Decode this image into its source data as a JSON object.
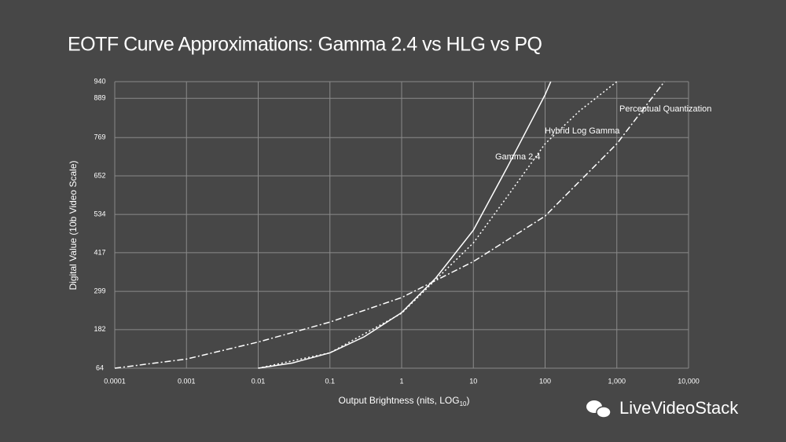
{
  "chart_data": {
    "type": "line",
    "title": "EOTF Curve Approximations: Gamma 2.4 vs HLG vs PQ",
    "xlabel": "Output Brightness (nits, LOG",
    "xlabel_sub": "10",
    "xlabel_end": ")",
    "ylabel": "Digital Value (10b Video Scale)",
    "watermark": "LiveVideoStack",
    "xscale": "log",
    "grid": true,
    "xlim": [
      0.0001,
      10000
    ],
    "xticks": [
      0.0001,
      0.001,
      0.01,
      0.1,
      1,
      10,
      100,
      {
        "value": 1000,
        "label": "1,000"
      },
      {
        "value": 10000,
        "label": "10,000"
      }
    ],
    "ylim": [
      64,
      940
    ],
    "yticks": [
      64,
      182,
      299,
      417,
      534,
      652,
      769,
      889,
      940
    ],
    "series": [
      {
        "name": "Gamma 2.4",
        "color": "#ffffff",
        "dash": "none",
        "x": [
          0.01,
          0.03,
          0.1,
          0.3,
          1,
          3,
          10,
          30,
          100,
          120
        ],
        "values": [
          64,
          80,
          111,
          160,
          234,
          340,
          486,
          680,
          900,
          940
        ]
      },
      {
        "name": "Hybrid Log Gamma",
        "color": "#ffffff",
        "dash": "2,3",
        "x": [
          0.01,
          0.1,
          1,
          3,
          10,
          30,
          100,
          300,
          1000
        ],
        "values": [
          64,
          111,
          232,
          335,
          447,
          590,
          750,
          850,
          940
        ]
      },
      {
        "name": "Perceptual Quantization",
        "color": "#ffffff",
        "dash": "8,3,2,3",
        "x": [
          0.0001,
          0.001,
          0.01,
          0.1,
          1,
          10,
          100,
          1000,
          4600
        ],
        "values": [
          64,
          92,
          144,
          205,
          280,
          390,
          529,
          750,
          940
        ]
      }
    ]
  }
}
